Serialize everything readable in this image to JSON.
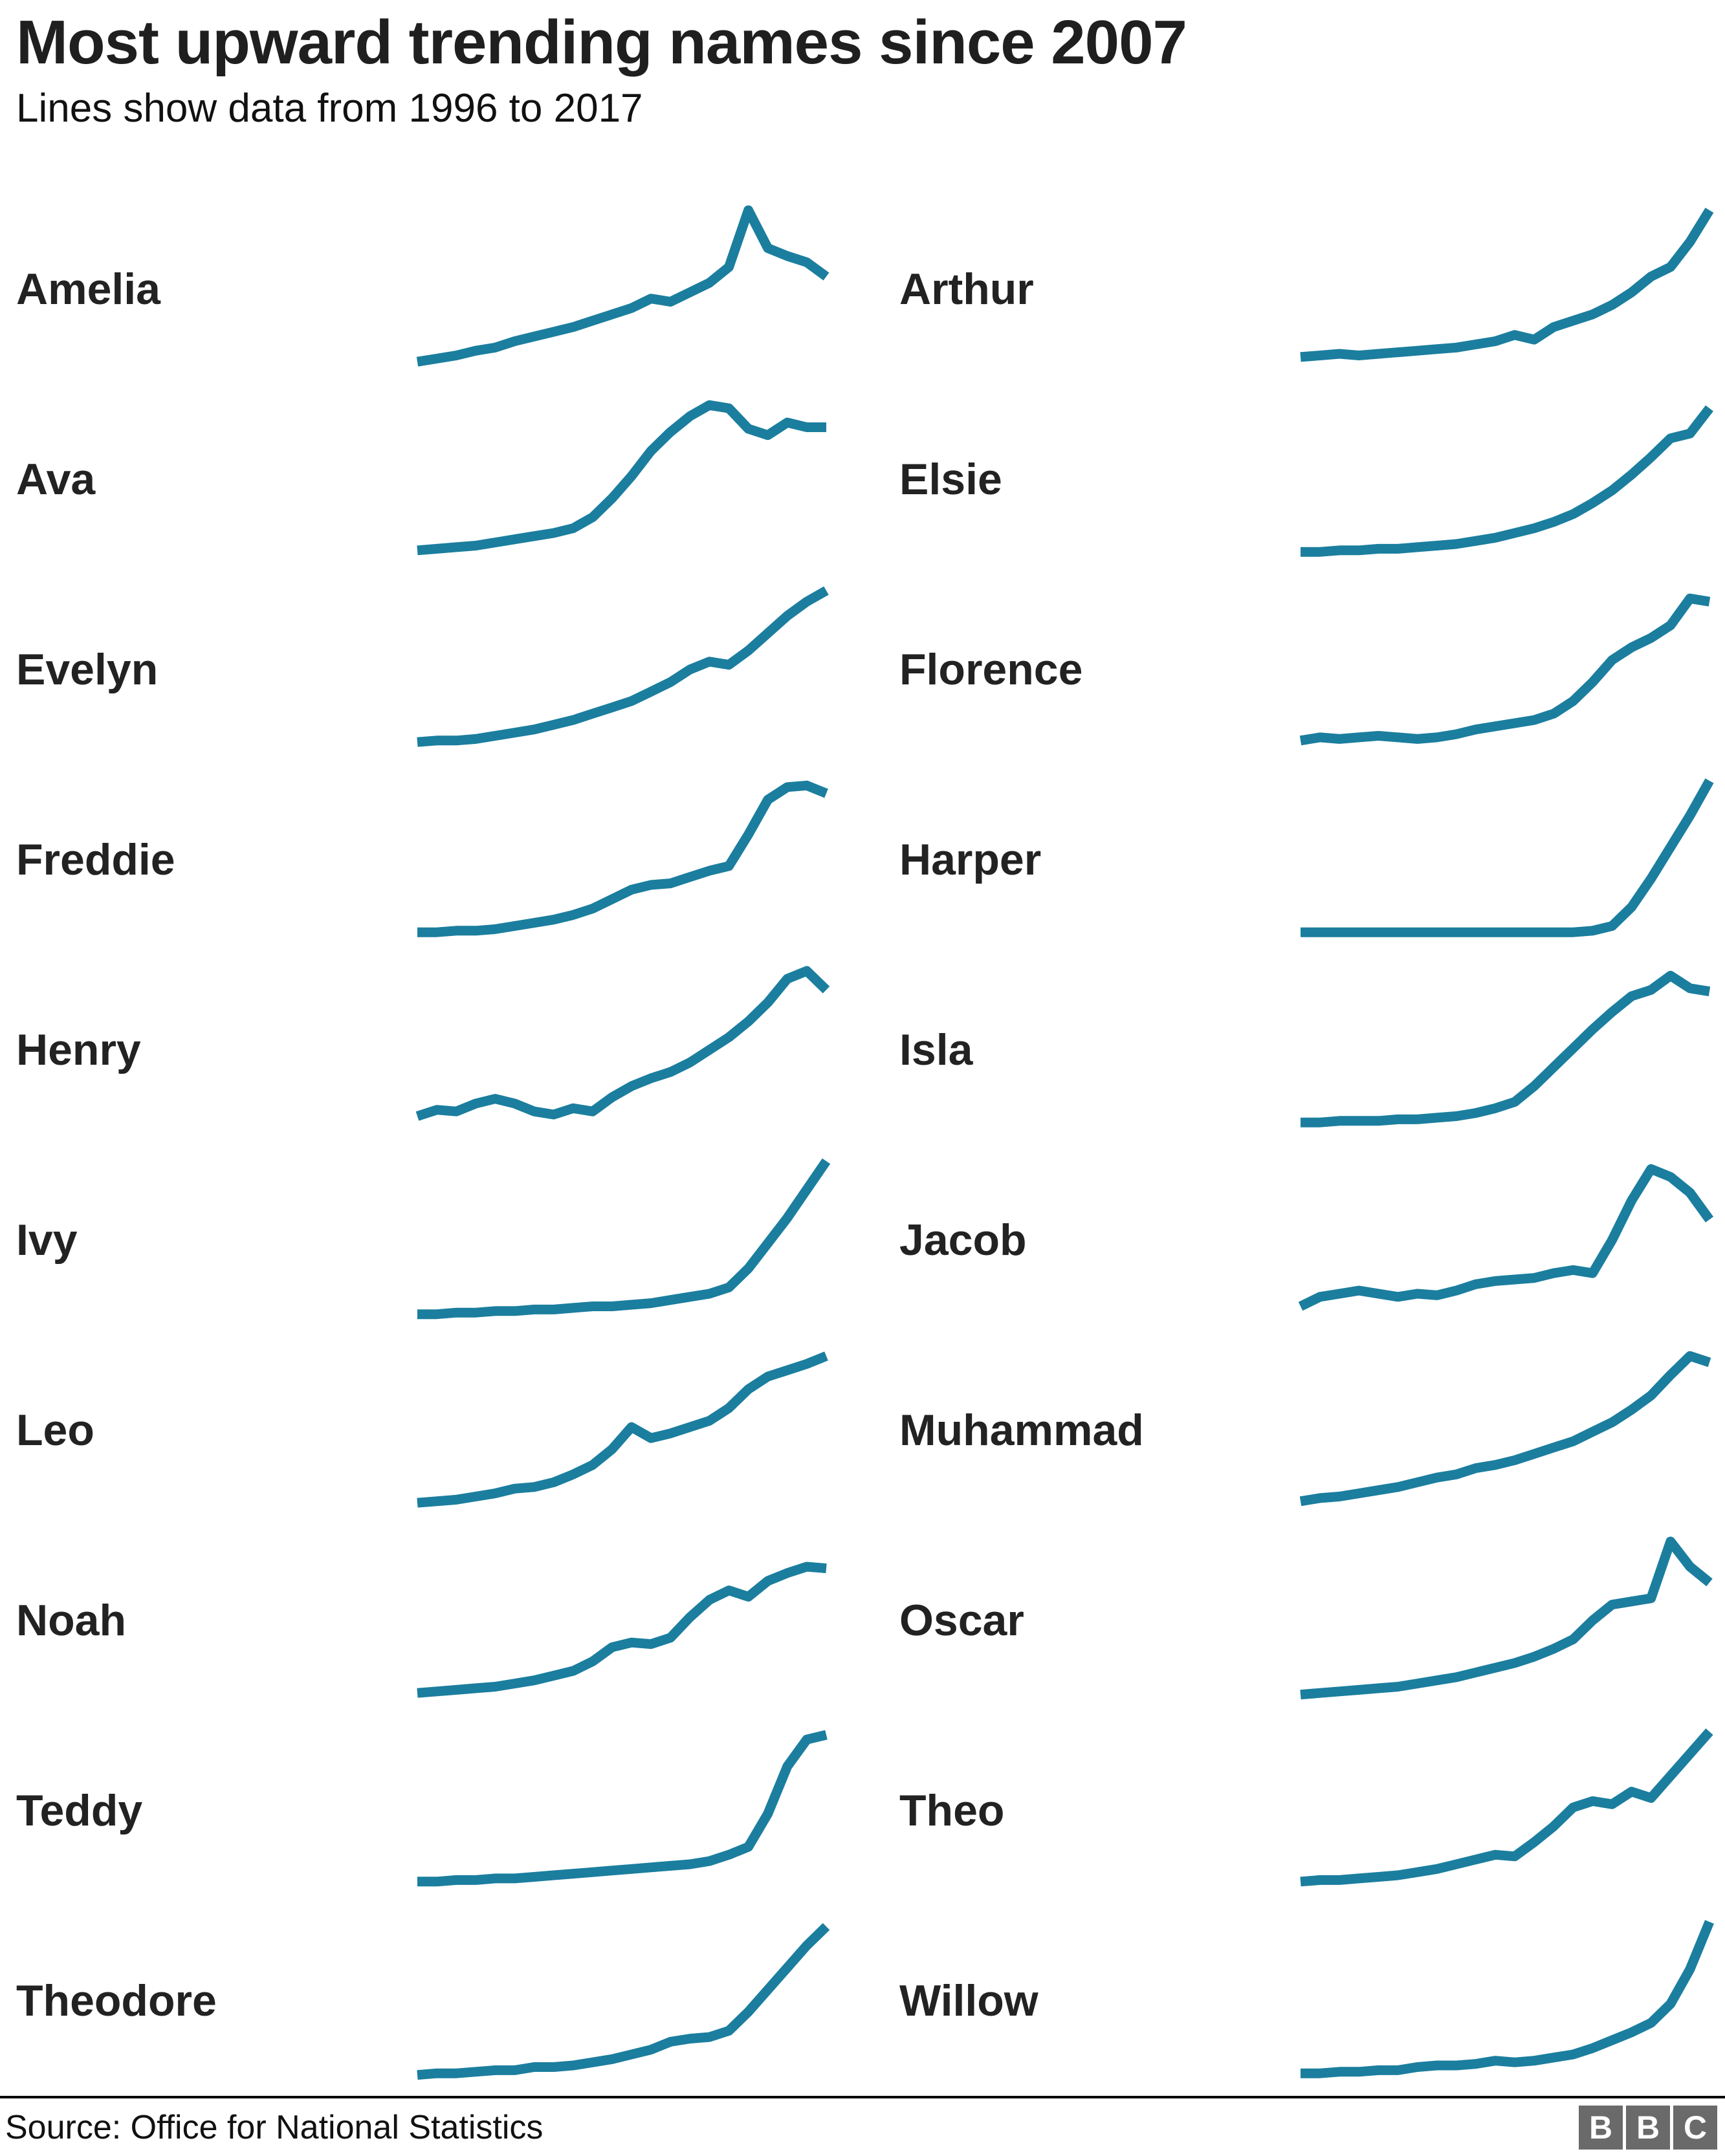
{
  "header": {
    "title": "Most upward trending names since 2007",
    "subtitle": "Lines show data from 1996 to 2017"
  },
  "footer": {
    "source": "Source: Office for National Statistics",
    "logo_letters": [
      "B",
      "B",
      "C"
    ]
  },
  "colors": {
    "line": "#1b7e9e",
    "title_text": "#1f1f1f",
    "label_text": "#222222",
    "logo_gray": "#6a6a6a"
  },
  "chart_data": {
    "type": "line",
    "title": "Most upward trending names since 2007",
    "subtitle": "Lines show data from 1996 to 2017",
    "x_range": [
      1996,
      2017
    ],
    "points_per_series": 22,
    "value_scale": "relative 0-100 per sparkline (no axes or gridlines shown)",
    "layout": "two-column grid of sparklines, row-major order, legend-free small multiples",
    "sparklines": [
      {
        "name": "Amelia",
        "values": [
          4,
          6,
          8,
          11,
          13,
          17,
          20,
          23,
          26,
          30,
          34,
          38,
          44,
          42,
          48,
          54,
          64,
          100,
          76,
          71,
          67,
          58
        ]
      },
      {
        "name": "Arthur",
        "values": [
          7,
          8,
          9,
          8,
          9,
          10,
          11,
          12,
          13,
          15,
          17,
          21,
          18,
          26,
          30,
          34,
          40,
          48,
          58,
          64,
          80,
          100
        ]
      },
      {
        "name": "Ava",
        "values": [
          5,
          6,
          7,
          8,
          10,
          12,
          14,
          16,
          19,
          26,
          38,
          52,
          68,
          80,
          90,
          97,
          95,
          82,
          78,
          86,
          83,
          83
        ]
      },
      {
        "name": "Elsie",
        "values": [
          4,
          4,
          5,
          5,
          6,
          6,
          7,
          8,
          9,
          11,
          13,
          16,
          19,
          23,
          28,
          35,
          43,
          53,
          64,
          76,
          79,
          95
        ]
      },
      {
        "name": "Evelyn",
        "values": [
          4,
          5,
          5,
          6,
          8,
          10,
          12,
          15,
          18,
          22,
          26,
          30,
          36,
          42,
          50,
          55,
          53,
          62,
          73,
          84,
          93,
          100
        ]
      },
      {
        "name": "Florence",
        "values": [
          5,
          7,
          6,
          7,
          8,
          7,
          6,
          7,
          9,
          12,
          14,
          16,
          18,
          22,
          30,
          42,
          56,
          64,
          70,
          78,
          95,
          93
        ]
      },
      {
        "name": "Freddie",
        "values": [
          4,
          4,
          5,
          5,
          6,
          8,
          10,
          12,
          15,
          19,
          25,
          31,
          34,
          35,
          39,
          43,
          46,
          66,
          88,
          96,
          97,
          92
        ]
      },
      {
        "name": "Harper",
        "values": [
          4,
          4,
          4,
          4,
          4,
          4,
          4,
          4,
          4,
          4,
          4,
          4,
          4,
          4,
          4,
          5,
          8,
          20,
          38,
          58,
          78,
          100
        ]
      },
      {
        "name": "Henry",
        "values": [
          8,
          12,
          11,
          16,
          19,
          16,
          11,
          9,
          13,
          11,
          20,
          27,
          32,
          36,
          42,
          50,
          58,
          68,
          80,
          95,
          100,
          88
        ]
      },
      {
        "name": "Isla",
        "values": [
          4,
          4,
          5,
          5,
          5,
          6,
          6,
          7,
          8,
          10,
          13,
          17,
          27,
          39,
          51,
          63,
          74,
          84,
          88,
          97,
          89,
          87
        ]
      },
      {
        "name": "Ivy",
        "values": [
          3,
          3,
          4,
          4,
          5,
          5,
          6,
          6,
          7,
          8,
          8,
          9,
          10,
          12,
          14,
          16,
          20,
          32,
          48,
          64,
          82,
          100
        ]
      },
      {
        "name": "Jacob",
        "values": [
          8,
          14,
          16,
          18,
          16,
          14,
          16,
          15,
          18,
          22,
          24,
          25,
          26,
          29,
          31,
          29,
          50,
          75,
          95,
          90,
          80,
          63
        ]
      },
      {
        "name": "Leo",
        "values": [
          4,
          5,
          6,
          8,
          10,
          13,
          14,
          17,
          22,
          28,
          38,
          52,
          45,
          48,
          52,
          56,
          64,
          76,
          84,
          88,
          92,
          97
        ]
      },
      {
        "name": "Muhammad",
        "values": [
          5,
          7,
          8,
          10,
          12,
          14,
          17,
          20,
          22,
          26,
          28,
          31,
          35,
          39,
          43,
          49,
          55,
          63,
          72,
          85,
          97,
          93
        ]
      },
      {
        "name": "Noah",
        "values": [
          4,
          5,
          6,
          7,
          8,
          10,
          12,
          15,
          18,
          24,
          33,
          36,
          35,
          39,
          52,
          63,
          69,
          65,
          75,
          80,
          84,
          83
        ]
      },
      {
        "name": "Oscar",
        "values": [
          3,
          4,
          5,
          6,
          7,
          8,
          10,
          12,
          14,
          17,
          20,
          23,
          27,
          32,
          38,
          50,
          60,
          62,
          64,
          100,
          84,
          74
        ]
      },
      {
        "name": "Teddy",
        "values": [
          5,
          5,
          6,
          6,
          7,
          7,
          8,
          9,
          10,
          11,
          12,
          13,
          14,
          15,
          16,
          18,
          22,
          27,
          48,
          78,
          95,
          98
        ]
      },
      {
        "name": "Theo",
        "values": [
          5,
          6,
          6,
          7,
          8,
          9,
          11,
          13,
          16,
          19,
          22,
          21,
          30,
          40,
          52,
          56,
          54,
          62,
          58,
          72,
          86,
          100
        ]
      },
      {
        "name": "Theodore",
        "values": [
          3,
          4,
          4,
          5,
          6,
          6,
          8,
          8,
          9,
          11,
          13,
          16,
          19,
          24,
          26,
          27,
          31,
          43,
          57,
          71,
          85,
          97
        ]
      },
      {
        "name": "Willow",
        "values": [
          4,
          4,
          5,
          5,
          6,
          6,
          8,
          9,
          9,
          10,
          12,
          11,
          12,
          14,
          16,
          20,
          25,
          30,
          36,
          48,
          70,
          100
        ]
      }
    ]
  }
}
